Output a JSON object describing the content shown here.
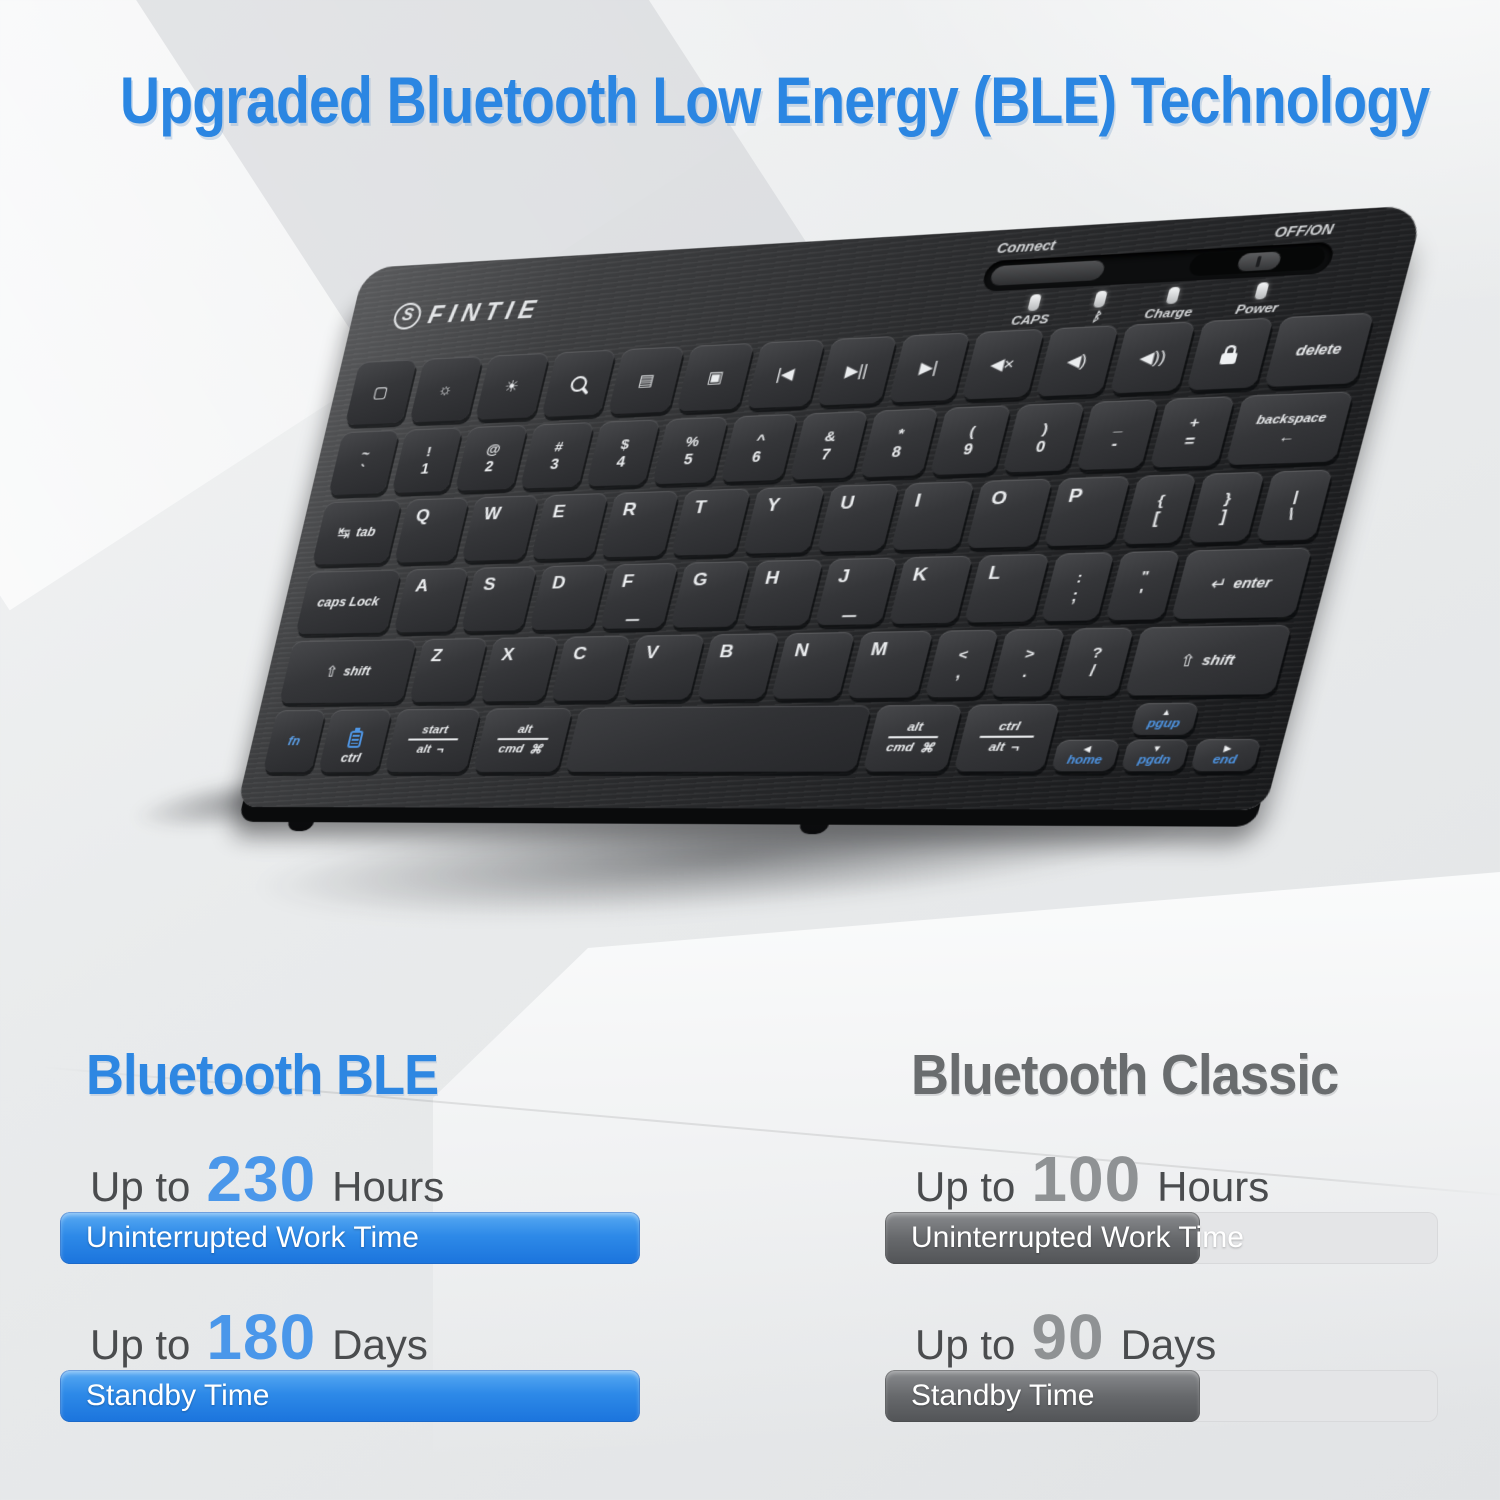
{
  "headline": "Upgraded Bluetooth Low Energy (BLE) Technology",
  "accent_blue": "#2e87e2",
  "accent_gray": "#696c6e",
  "keyboard": {
    "brand": "FINTIE",
    "logo_icon": "fintie-s-icon",
    "logo_badge": "S",
    "controls": {
      "connect_label": "Connect",
      "onoff_label": "OFF/ON",
      "indicators": [
        {
          "name": "caps",
          "label": "CAPS"
        },
        {
          "name": "bluetooth",
          "label": "ᛒ"
        },
        {
          "name": "charge",
          "label": "Charge"
        },
        {
          "name": "power",
          "label": "Power"
        }
      ]
    },
    "rows": [
      [
        {
          "name": "home-screen-key",
          "icon": "home-screen-icon",
          "glyph": "▢"
        },
        {
          "name": "brightness-down-key",
          "icon": "brightness-down-icon",
          "glyph": "☼"
        },
        {
          "name": "brightness-up-key",
          "icon": "brightness-up-icon",
          "glyph": "☀"
        },
        {
          "name": "search-key",
          "icon": "search-icon",
          "shape": "search"
        },
        {
          "name": "virtual-keyboard-key",
          "icon": "virtual-keyboard-icon",
          "glyph": "▤"
        },
        {
          "name": "screenshot-key",
          "icon": "screenshot-icon",
          "glyph": "▣"
        },
        {
          "name": "previous-track-key",
          "icon": "previous-track-icon",
          "glyph": "|◀"
        },
        {
          "name": "play-pause-key",
          "icon": "play-pause-icon",
          "glyph": "▶||"
        },
        {
          "name": "next-track-key",
          "icon": "next-track-icon",
          "glyph": "▶|"
        },
        {
          "name": "mute-key",
          "icon": "mute-icon",
          "glyph": "◀×"
        },
        {
          "name": "volume-down-key",
          "icon": "volume-down-icon",
          "glyph": "◀)"
        },
        {
          "name": "volume-up-key",
          "icon": "volume-up-icon",
          "glyph": "◀))"
        },
        {
          "name": "lock-key",
          "icon": "lock-icon",
          "shape": "lock"
        },
        {
          "name": "delete-key",
          "label": "delete",
          "w": 1.3,
          "small": true
        }
      ],
      [
        {
          "name": "tilde-key",
          "t": "~",
          "b": "`"
        },
        {
          "name": "key-1",
          "t": "!",
          "b": "1"
        },
        {
          "name": "key-2",
          "t": "@",
          "b": "2"
        },
        {
          "name": "key-3",
          "t": "#",
          "b": "3"
        },
        {
          "name": "key-4",
          "t": "$",
          "b": "4"
        },
        {
          "name": "key-5",
          "t": "%",
          "b": "5"
        },
        {
          "name": "key-6",
          "t": "^",
          "b": "6"
        },
        {
          "name": "key-7",
          "t": "&",
          "b": "7"
        },
        {
          "name": "key-8",
          "t": "*",
          "b": "8"
        },
        {
          "name": "key-9",
          "t": "(",
          "b": "9"
        },
        {
          "name": "key-0",
          "t": ")",
          "b": "0"
        },
        {
          "name": "minus-key",
          "t": "_",
          "b": "-"
        },
        {
          "name": "equals-key",
          "t": "+",
          "b": "="
        },
        {
          "name": "backspace-key",
          "label": "backspace",
          "glyph": "←",
          "icon": "backspace-arrow-icon",
          "w": 1.6,
          "stacklabel": true
        }
      ],
      [
        {
          "name": "tab-key",
          "label": "tab",
          "glyph": "↹",
          "icon": "tab-arrows-icon",
          "w": 1.55,
          "small": true
        },
        {
          "name": "key-q",
          "l": "Q"
        },
        {
          "name": "key-w",
          "l": "W"
        },
        {
          "name": "key-e",
          "l": "E"
        },
        {
          "name": "key-r",
          "l": "R"
        },
        {
          "name": "key-t",
          "l": "T"
        },
        {
          "name": "key-y",
          "l": "Y"
        },
        {
          "name": "key-u",
          "l": "U"
        },
        {
          "name": "key-i",
          "l": "I"
        },
        {
          "name": "key-o",
          "l": "O"
        },
        {
          "name": "key-p",
          "l": "P"
        },
        {
          "name": "bracket-open-key",
          "t": "{",
          "b": "["
        },
        {
          "name": "bracket-close-key",
          "t": "}",
          "b": "]"
        },
        {
          "name": "backslash-key",
          "t": "|",
          "b": "\\"
        }
      ],
      [
        {
          "name": "caps-lock-key",
          "label": "caps Lock",
          "w": 1.9,
          "small": true
        },
        {
          "name": "key-a",
          "l": "A"
        },
        {
          "name": "key-s",
          "l": "S"
        },
        {
          "name": "key-d",
          "l": "D"
        },
        {
          "name": "key-f",
          "l": "F",
          "bump": true
        },
        {
          "name": "key-g",
          "l": "G"
        },
        {
          "name": "key-h",
          "l": "H"
        },
        {
          "name": "key-j",
          "l": "J",
          "bump": true
        },
        {
          "name": "key-k",
          "l": "K"
        },
        {
          "name": "key-l",
          "l": "L"
        },
        {
          "name": "semicolon-key",
          "t": ":",
          "b": ";"
        },
        {
          "name": "quote-key",
          "t": "\"",
          "b": "'"
        },
        {
          "name": "enter-key",
          "label": "enter",
          "glyph": "↵",
          "icon": "enter-arrow-icon",
          "w": 2.1
        }
      ],
      [
        {
          "name": "shift-left-key",
          "label": "shift",
          "glyph": "⇧",
          "icon": "shift-arrow-icon",
          "w": 2.45
        },
        {
          "name": "key-z",
          "l": "Z"
        },
        {
          "name": "key-x",
          "l": "X"
        },
        {
          "name": "key-c",
          "l": "C"
        },
        {
          "name": "key-v",
          "l": "V"
        },
        {
          "name": "key-b",
          "l": "B"
        },
        {
          "name": "key-n",
          "l": "N"
        },
        {
          "name": "key-m",
          "l": "M"
        },
        {
          "name": "comma-key",
          "t": "<",
          "b": ","
        },
        {
          "name": "period-key",
          "t": ">",
          "b": "."
        },
        {
          "name": "slash-key",
          "t": "?",
          "b": "/"
        },
        {
          "name": "shift-right-key",
          "label": "shift",
          "glyph": "⇧",
          "icon": "shift-arrow-icon",
          "w": 2.45
        }
      ],
      [
        {
          "name": "fn-key",
          "label": "fn",
          "blue": true,
          "w": 0.95
        },
        {
          "name": "ctrl-key",
          "label": "ctrl",
          "shape": "battery",
          "icon": "battery-icon",
          "w": 1.15
        },
        {
          "name": "start-alt-key",
          "stack2": [
            "start",
            "alt"
          ],
          "glyph2": "¬",
          "icon": "alt-key-icon",
          "w": 1.4
        },
        {
          "name": "alt-cmd-key",
          "stack2": [
            "alt",
            "cmd"
          ],
          "glyph2": "⌘",
          "icon": "cmd-icon",
          "w": 1.4
        },
        {
          "name": "spacebar-key",
          "space": true,
          "w": 5.2
        },
        {
          "name": "alt-cmd-right-key",
          "stack2": [
            "alt",
            "cmd"
          ],
          "glyph2": "⌘",
          "icon": "cmd-icon",
          "w": 1.25
        },
        {
          "name": "ctrl-alt-key",
          "stack2": [
            "ctrl",
            "alt"
          ],
          "glyph2": "¬",
          "icon": "alt-key-icon",
          "w": 1.35
        },
        {
          "name": "home-key",
          "label": "home",
          "arrow": "◀",
          "blue": true,
          "half": true,
          "w": 1.0
        },
        {
          "name": "page-keys",
          "stack": [
            {
              "name": "pgup-key",
              "label": "pgup",
              "arrow": "▲"
            },
            {
              "name": "pgdn-key",
              "label": "pgdn",
              "arrow": "▼"
            }
          ],
          "w": 1.0
        },
        {
          "name": "end-key",
          "label": "end",
          "arrow": "▶",
          "blue": true,
          "half": true,
          "w": 1.0
        }
      ]
    ]
  },
  "comparison": {
    "left": {
      "title": "Bluetooth BLE",
      "rows": [
        {
          "prefix": "Up to",
          "value": "230",
          "unit": "Hours",
          "bar_label": "Uninterrupted Work Time",
          "fill_pct": 100
        },
        {
          "prefix": "Up to",
          "value": "180",
          "unit": "Days",
          "bar_label": "Standby Time",
          "fill_pct": 100
        }
      ]
    },
    "right": {
      "title": "Bluetooth Classic",
      "rows": [
        {
          "prefix": "Up to",
          "value": "100",
          "unit": "Hours",
          "bar_label": "Uninterrupted Work Time",
          "fill_pct": 57
        },
        {
          "prefix": "Up to",
          "value": "90",
          "unit": "Days",
          "bar_label": "Standby Time",
          "fill_pct": 57
        }
      ]
    }
  }
}
